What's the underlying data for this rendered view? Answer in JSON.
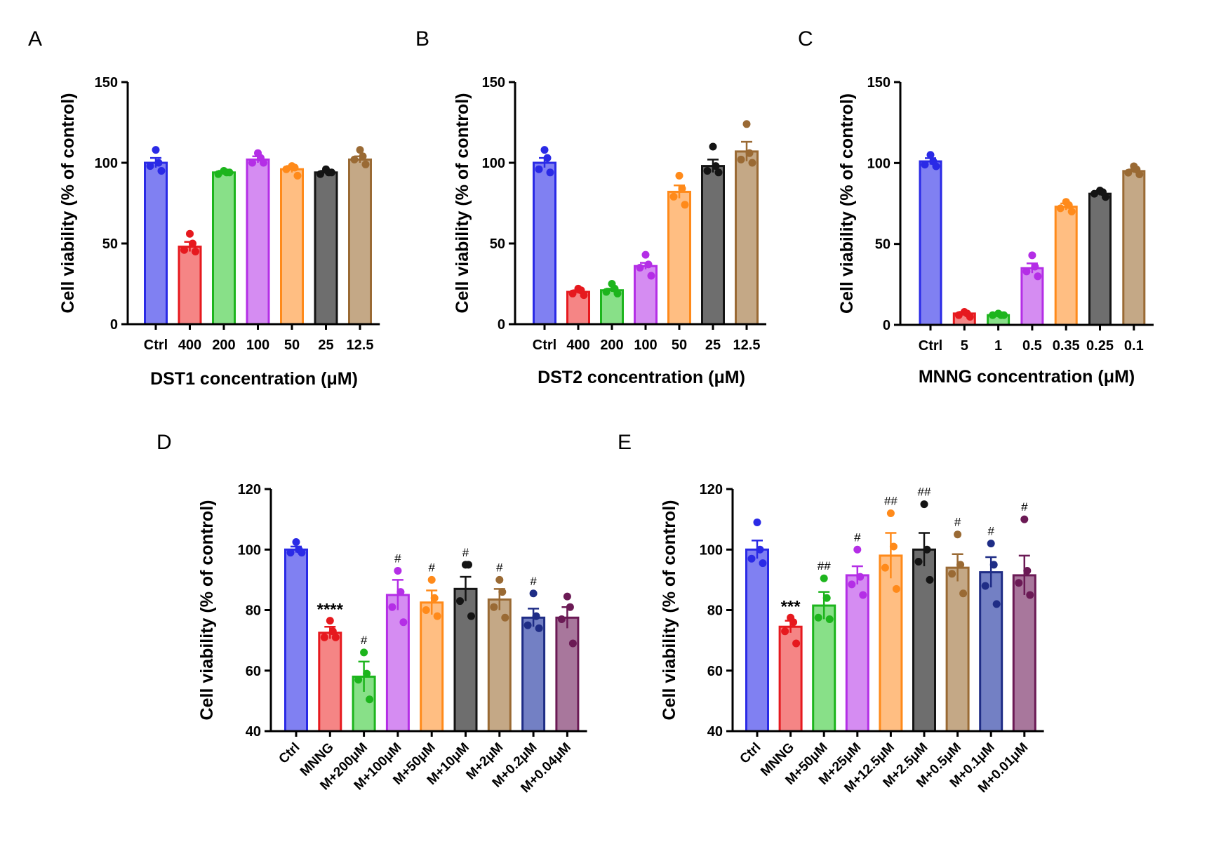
{
  "chart_data": [
    {
      "panel": "A",
      "type": "bar",
      "ylabel": "Cell viability (% of control)",
      "xlabel": "DST1 concentration (μM)",
      "ylim": [
        0,
        150
      ],
      "yticks": [
        0,
        50,
        100,
        150
      ],
      "categories": [
        "Ctrl",
        "400",
        "200",
        "100",
        "50",
        "25",
        "12.5"
      ],
      "values": [
        100,
        48,
        94,
        102,
        96,
        94,
        102
      ],
      "errors": [
        3,
        3,
        1,
        2,
        2,
        1,
        2
      ],
      "points": [
        [
          108,
          100,
          98,
          95
        ],
        [
          56,
          50,
          46,
          45
        ],
        [
          95,
          94,
          93,
          94
        ],
        [
          106,
          103,
          100,
          100
        ],
        [
          98,
          97,
          96,
          92
        ],
        [
          96,
          94,
          93,
          94
        ],
        [
          108,
          104,
          102,
          99
        ]
      ],
      "colors": [
        "#2a2ae6",
        "#e6191e",
        "#1db51d",
        "#b42ee6",
        "#ff8a1a",
        "#141414",
        "#9a6a34"
      ],
      "fills": [
        "#8080f2",
        "#f58585",
        "#88e088",
        "#d58cf2",
        "#ffbe82",
        "#6e6e6e",
        "#c4a886"
      ],
      "significance": []
    },
    {
      "panel": "B",
      "type": "bar",
      "ylabel": "Cell viability (% of control)",
      "xlabel": "DST2 concentration (μM)",
      "ylim": [
        0,
        150
      ],
      "yticks": [
        0,
        50,
        100,
        150
      ],
      "categories": [
        "Ctrl",
        "400",
        "200",
        "100",
        "50",
        "25",
        "12.5"
      ],
      "values": [
        100,
        20,
        21,
        36,
        82,
        98,
        107
      ],
      "errors": [
        3,
        1,
        1,
        2,
        4,
        4,
        6
      ],
      "points": [
        [
          108,
          103,
          96,
          94
        ],
        [
          22,
          21,
          19,
          18
        ],
        [
          25,
          22,
          20,
          19
        ],
        [
          43,
          37,
          35,
          30
        ],
        [
          92,
          84,
          79,
          74
        ],
        [
          110,
          98,
          95,
          94
        ],
        [
          124,
          106,
          102,
          100
        ]
      ],
      "colors": [
        "#2a2ae6",
        "#e6191e",
        "#1db51d",
        "#b42ee6",
        "#ff8a1a",
        "#141414",
        "#9a6a34"
      ],
      "fills": [
        "#8080f2",
        "#f58585",
        "#88e088",
        "#d58cf2",
        "#ffbe82",
        "#6e6e6e",
        "#c4a886"
      ],
      "significance": []
    },
    {
      "panel": "C",
      "type": "bar",
      "ylabel": "Cell viability (% of control)",
      "xlabel": "MNNG concentration (μM)",
      "ylim": [
        0,
        150
      ],
      "yticks": [
        0,
        50,
        100,
        150
      ],
      "categories": [
        "Ctrl",
        "5",
        "1",
        "0.5",
        "0.35",
        "0.25",
        "0.1"
      ],
      "values": [
        101,
        7,
        6,
        35,
        73,
        81,
        95
      ],
      "errors": [
        2,
        1,
        0.5,
        3,
        2,
        1,
        1
      ],
      "points": [
        [
          105,
          101,
          99,
          98
        ],
        [
          8,
          7,
          6,
          5
        ],
        [
          7,
          6,
          6,
          6
        ],
        [
          43,
          36,
          33,
          30
        ],
        [
          76,
          74,
          72,
          70
        ],
        [
          83,
          82,
          81,
          79
        ],
        [
          98,
          96,
          94,
          93
        ]
      ],
      "colors": [
        "#2a2ae6",
        "#e6191e",
        "#1db51d",
        "#b42ee6",
        "#ff8a1a",
        "#141414",
        "#9a6a34"
      ],
      "fills": [
        "#8080f2",
        "#f58585",
        "#88e088",
        "#d58cf2",
        "#ffbe82",
        "#6e6e6e",
        "#c4a886"
      ],
      "significance": []
    },
    {
      "panel": "D",
      "type": "bar",
      "ylabel": "Cell viability (% of control)",
      "xlabel": "",
      "ylim": [
        40,
        120
      ],
      "yticks": [
        40,
        60,
        80,
        100,
        120
      ],
      "categories": [
        "Ctrl",
        "MNNG",
        "M+200μM",
        "M+100μM",
        "M+50μM",
        "M+10μM",
        "M+2μM",
        "M+0.2μM",
        "M+0.04μM"
      ],
      "values": [
        100,
        72.5,
        58,
        85,
        82.5,
        87,
        83.5,
        77.5,
        77.5
      ],
      "errors": [
        1,
        2,
        5,
        5,
        4,
        4,
        3.5,
        3,
        3.5
      ],
      "points": [
        [
          102.5,
          100,
          99,
          99
        ],
        [
          76.5,
          73,
          71,
          71
        ],
        [
          66,
          59,
          57,
          50.5
        ],
        [
          93,
          86,
          81,
          76
        ],
        [
          90,
          84,
          80,
          78
        ],
        [
          95,
          95,
          83,
          78
        ],
        [
          90,
          86,
          81,
          77.5
        ],
        [
          85.5,
          78,
          75,
          74
        ],
        [
          84.5,
          81,
          77,
          69
        ]
      ],
      "colors": [
        "#2a2ae6",
        "#e6191e",
        "#1db51d",
        "#b42ee6",
        "#ff8a1a",
        "#141414",
        "#9a6a34",
        "#1f2d86",
        "#6b1a55"
      ],
      "fills": [
        "#8080f2",
        "#f58585",
        "#88e088",
        "#d58cf2",
        "#ffbe82",
        "#6e6e6e",
        "#c4a886",
        "#7380c4",
        "#a8779c"
      ],
      "significance": [
        "",
        "****",
        "#",
        "#",
        "#",
        "#",
        "#",
        "#",
        ""
      ]
    },
    {
      "panel": "E",
      "type": "bar",
      "ylabel": "Cell viability (% of control)",
      "xlabel": "",
      "ylim": [
        40,
        120
      ],
      "yticks": [
        40,
        60,
        80,
        100,
        120
      ],
      "categories": [
        "Ctrl",
        "MNNG",
        "M+50μM",
        "M+25μM",
        "M+12.5μM",
        "M+2.5μM",
        "M+0.5μM",
        "M+0.1μM",
        "M+0.01μM"
      ],
      "values": [
        100,
        74.5,
        81.5,
        91.5,
        98,
        100,
        94,
        92.5,
        91.5
      ],
      "errors": [
        3,
        2,
        4.5,
        3,
        7.5,
        5.5,
        4.5,
        5,
        6.5
      ],
      "points": [
        [
          109,
          100,
          97,
          95.5
        ],
        [
          77.5,
          76,
          73,
          69
        ],
        [
          90.5,
          84,
          77.5,
          77
        ],
        [
          100,
          91,
          88.5,
          85
        ],
        [
          112,
          101,
          94,
          87
        ],
        [
          115,
          100,
          96,
          90
        ],
        [
          105,
          95,
          92,
          85.5
        ],
        [
          102,
          95,
          88,
          82
        ],
        [
          110,
          93,
          89,
          85
        ]
      ],
      "colors": [
        "#2a2ae6",
        "#e6191e",
        "#1db51d",
        "#b42ee6",
        "#ff8a1a",
        "#141414",
        "#9a6a34",
        "#1f2d86",
        "#6b1a55"
      ],
      "fills": [
        "#8080f2",
        "#f58585",
        "#88e088",
        "#d58cf2",
        "#ffbe82",
        "#6e6e6e",
        "#c4a886",
        "#7380c4",
        "#a8779c"
      ],
      "significance": [
        "",
        "***",
        "##",
        "#",
        "##",
        "##",
        "#",
        "#",
        "#"
      ]
    }
  ]
}
